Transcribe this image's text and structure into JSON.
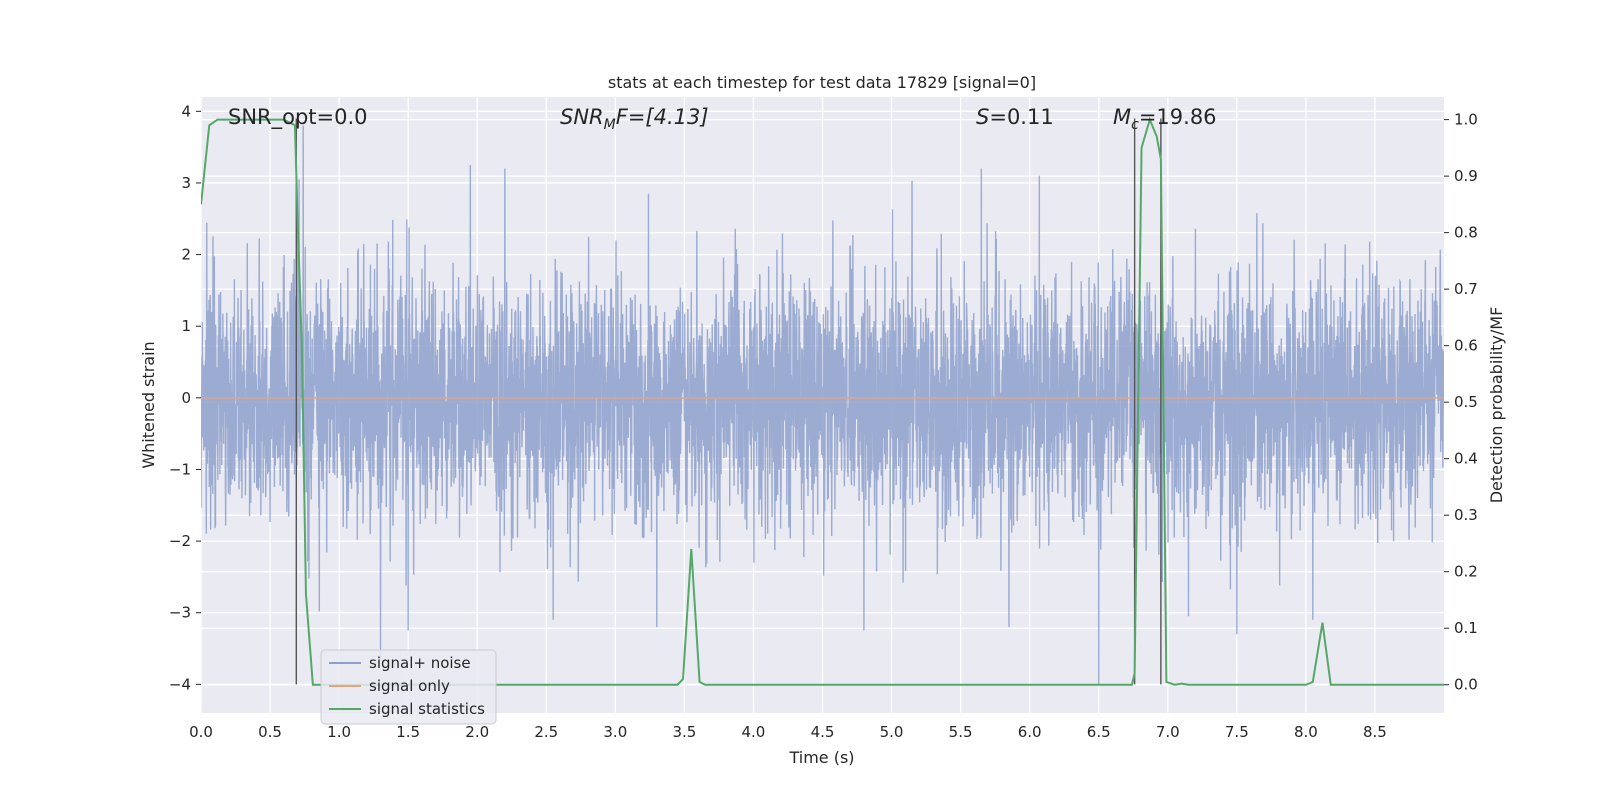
{
  "chart_data": {
    "type": "line",
    "title": "stats at each timestep for test data 17829 [signal=0]",
    "xlabel": "Time (s)",
    "ylabel_left": "Whitened strain",
    "ylabel_right": "Detection probability/MF",
    "xlim": [
      0,
      9
    ],
    "ylim_left": [
      -4.4,
      4.2
    ],
    "ylim_right": [
      -0.05,
      1.04
    ],
    "x_ticks": [
      0.0,
      0.5,
      1.0,
      1.5,
      2.0,
      2.5,
      3.0,
      3.5,
      4.0,
      4.5,
      5.0,
      5.5,
      6.0,
      6.5,
      7.0,
      7.5,
      8.0,
      8.5
    ],
    "x_tick_labels": [
      "0.0",
      "0.5",
      "1.0",
      "1.5",
      "2.0",
      "2.5",
      "3.0",
      "3.5",
      "4.0",
      "4.5",
      "5.0",
      "5.5",
      "6.0",
      "6.5",
      "7.0",
      "7.5",
      "8.0",
      "8.5"
    ],
    "y_left_ticks": [
      -4,
      -3,
      -2,
      -1,
      0,
      1,
      2,
      3,
      4
    ],
    "y_left_tick_labels": [
      "−4",
      "−3",
      "−2",
      "−1",
      "0",
      "1",
      "2",
      "3",
      "4"
    ],
    "y_right_ticks": [
      0.0,
      0.1,
      0.2,
      0.3,
      0.4,
      0.5,
      0.6,
      0.7,
      0.8,
      0.9,
      1.0
    ],
    "y_right_tick_labels": [
      "0.0",
      "0.1",
      "0.2",
      "0.3",
      "0.4",
      "0.5",
      "0.6",
      "0.7",
      "0.8",
      "0.9",
      "1.0"
    ],
    "grid": true,
    "legend_position": "lower-left",
    "annotations": {
      "snr_opt": "SNR_opt=0.0",
      "snr_mf_main": "SNR",
      "snr_mf_sub": "M",
      "snr_mf_rest": "F=[4.13]",
      "s_var": "S",
      "s_val": "=0.11",
      "mc_var": "M",
      "mc_sub": "c",
      "mc_val": "=19.86"
    },
    "vertical_markers_x": [
      0.69,
      6.76,
      6.95
    ],
    "series": [
      {
        "name": "signal+ noise",
        "axis": "left",
        "color": "#8da0cb",
        "style": "noise",
        "sample_rate": 600,
        "typical_std": 0.85,
        "peak_spikes": [
          [
            0.74,
            3.8
          ],
          [
            0.71,
            3.05
          ],
          [
            1.95,
            3.25
          ],
          [
            2.2,
            3.2
          ],
          [
            3.24,
            2.85
          ],
          [
            5.65,
            3.2
          ],
          [
            6.07,
            3.1
          ],
          [
            6.5,
            3.15
          ],
          [
            1.5,
            -3.25
          ],
          [
            2.55,
            -3.1
          ],
          [
            3.3,
            -3.2
          ],
          [
            4.8,
            -3.25
          ],
          [
            6.5,
            -4.0
          ],
          [
            5.85,
            -3.2
          ],
          [
            7.15,
            -3.05
          ],
          [
            7.5,
            -3.3
          ],
          [
            8.05,
            -3.1
          ]
        ]
      },
      {
        "name": "signal only",
        "axis": "left",
        "color": "#e8a27c",
        "x": [
          0,
          9
        ],
        "y": [
          0,
          0
        ]
      },
      {
        "name": "signal statistics",
        "axis": "right",
        "color": "#55a868",
        "x": [
          0.0,
          0.06,
          0.12,
          0.2,
          0.3,
          0.4,
          0.5,
          0.6,
          0.68,
          0.7,
          0.73,
          0.76,
          0.81,
          0.9,
          1.0,
          1.5,
          2.0,
          2.5,
          3.0,
          3.45,
          3.49,
          3.55,
          3.61,
          3.65,
          4.0,
          4.5,
          5.0,
          5.5,
          6.0,
          6.5,
          6.74,
          6.76,
          6.81,
          6.87,
          6.92,
          6.95,
          6.99,
          7.05,
          7.1,
          7.15,
          7.2,
          7.5,
          7.9,
          8.0,
          8.05,
          8.12,
          8.18,
          8.3,
          8.5,
          9.0
        ],
        "y": [
          0.85,
          0.99,
          1.0,
          1.0,
          1.0,
          1.0,
          1.0,
          1.0,
          0.99,
          0.82,
          0.6,
          0.16,
          0.0,
          0.0,
          0.0,
          0.0,
          0.0,
          0.0,
          0.0,
          0.0,
          0.01,
          0.24,
          0.005,
          0.0,
          0.0,
          0.0,
          0.0,
          0.0,
          0.0,
          0.0,
          0.0,
          0.02,
          0.95,
          1.0,
          0.97,
          0.93,
          0.005,
          0.0,
          0.002,
          0.0,
          0.0,
          0.0,
          0.0,
          0.0,
          0.005,
          0.11,
          0.0,
          0.0,
          0.0,
          0.0
        ]
      }
    ]
  }
}
